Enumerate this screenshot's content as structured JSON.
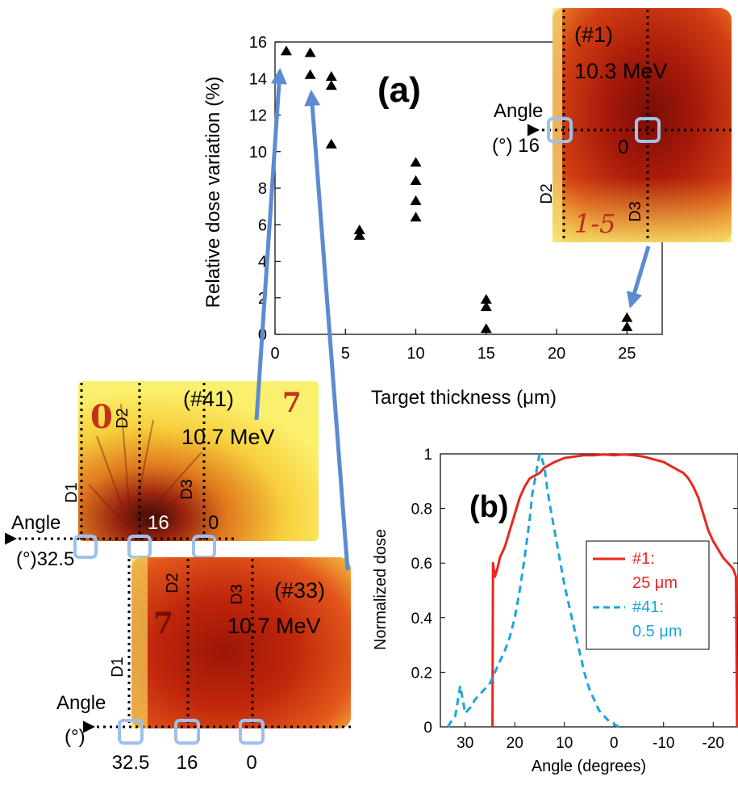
{
  "chart_data": [
    {
      "id": "a",
      "type": "scatter",
      "panel_label": "(a)",
      "xlabel": "Target thickness (μm)",
      "ylabel": "Relative dose variation (%)",
      "xlim": [
        0,
        27.5
      ],
      "ylim": [
        0,
        16
      ],
      "xticks": [
        0,
        5,
        10,
        15,
        20,
        25
      ],
      "yticks": [
        0,
        2,
        4,
        6,
        8,
        10,
        12,
        14,
        16
      ],
      "marker": "filled-triangle",
      "series": [
        {
          "points": [
            {
              "x": 0.8,
              "y": 15.5
            },
            {
              "x": 2.5,
              "y": 15.4
            },
            {
              "x": 2.5,
              "y": 14.2
            },
            {
              "x": 4.0,
              "y": 14.1
            },
            {
              "x": 4.0,
              "y": 13.6
            },
            {
              "x": 4.0,
              "y": 10.4
            },
            {
              "x": 6.0,
              "y": 5.7
            },
            {
              "x": 6.0,
              "y": 5.4
            },
            {
              "x": 10.0,
              "y": 9.4
            },
            {
              "x": 10.0,
              "y": 8.4
            },
            {
              "x": 10.0,
              "y": 7.3
            },
            {
              "x": 10.0,
              "y": 6.4
            },
            {
              "x": 15.0,
              "y": 1.9
            },
            {
              "x": 15.0,
              "y": 1.5
            },
            {
              "x": 15.0,
              "y": 0.3
            },
            {
              "x": 25.0,
              "y": 0.9
            },
            {
              "x": 25.0,
              "y": 0.4
            }
          ]
        }
      ]
    },
    {
      "id": "b",
      "type": "line",
      "panel_label": "(b)",
      "xlabel": "Angle (degrees)",
      "ylabel": "Normalized dose",
      "xlim": [
        35,
        -25
      ],
      "ylim": [
        0,
        1
      ],
      "xticks": [
        30,
        20,
        10,
        0,
        -10,
        -20
      ],
      "xtick_labels": [
        "30",
        "20",
        "10",
        "0",
        "-10",
        "-20"
      ],
      "yticks": [
        0,
        0.2,
        0.4,
        0.6,
        0.8,
        1
      ],
      "ytick_labels": [
        "0",
        "0.2",
        "0.4",
        "0.6",
        "0.8",
        "1"
      ],
      "legend": "inside-right",
      "series": [
        {
          "name_line1": "#1:",
          "name_line2": "25 μm",
          "color": "#e8281e",
          "dash": "solid",
          "x": [
            24.5,
            24.4,
            24.0,
            23.5,
            23.0,
            22.0,
            21.0,
            20.0,
            19.0,
            18.0,
            17.0,
            16.0,
            15.0,
            14.0,
            12.0,
            10.0,
            8.0,
            6.0,
            4.0,
            2.0,
            0.0,
            -2.0,
            -4.0,
            -6.0,
            -8.0,
            -10.0,
            -12.0,
            -14.0,
            -15.0,
            -16.0,
            -17.0,
            -18.0,
            -19.0,
            -20.0,
            -21.0,
            -22.0,
            -23.0,
            -24.0,
            -24.6,
            -24.8
          ],
          "y": [
            0.0,
            0.6,
            0.55,
            0.58,
            0.62,
            0.66,
            0.72,
            0.78,
            0.84,
            0.88,
            0.91,
            0.92,
            0.93,
            0.95,
            0.97,
            0.985,
            0.99,
            0.995,
            0.995,
            0.998,
            0.995,
            0.998,
            0.995,
            0.99,
            0.98,
            0.97,
            0.95,
            0.93,
            0.91,
            0.88,
            0.84,
            0.78,
            0.72,
            0.68,
            0.65,
            0.62,
            0.6,
            0.58,
            0.55,
            0.0
          ]
        },
        {
          "name_line1": "#41:",
          "name_line2": "0.5 μm",
          "color": "#1ba6dc",
          "dash": "dashed",
          "x": [
            33.5,
            32.8,
            32.0,
            31.0,
            30.0,
            29.0,
            28.0,
            27.0,
            26.0,
            25.0,
            24.0,
            23.0,
            22.0,
            21.0,
            20.0,
            19.0,
            18.0,
            17.0,
            16.5,
            16.0,
            15.5,
            15.0,
            14.5,
            14.0,
            13.5,
            13.0,
            12.0,
            11.0,
            10.0,
            9.0,
            8.0,
            7.0,
            6.0,
            5.0,
            4.0,
            3.0,
            2.0,
            1.0,
            0.0,
            -1.0,
            -2.0
          ],
          "y": [
            0.0,
            0.02,
            0.04,
            0.15,
            0.05,
            0.07,
            0.1,
            0.12,
            0.14,
            0.16,
            0.2,
            0.24,
            0.28,
            0.33,
            0.4,
            0.5,
            0.62,
            0.76,
            0.85,
            0.9,
            0.95,
            1.0,
            0.98,
            0.95,
            0.88,
            0.82,
            0.72,
            0.62,
            0.52,
            0.44,
            0.36,
            0.28,
            0.2,
            0.14,
            0.1,
            0.06,
            0.04,
            0.02,
            0.01,
            0.0,
            0.0
          ]
        }
      ]
    }
  ],
  "film_images": [
    {
      "id": "film-1",
      "title_line1": "(#1)",
      "title_line2": "10.3 MeV",
      "angle_label_line1": "Angle",
      "angle_label_line2": "(°) 16",
      "zero_label": "0",
      "d2_label": "D2",
      "d3_label": "D3",
      "scribble": "1-5",
      "palette": "dark-red"
    },
    {
      "id": "film-41",
      "title_line1": "(#41)",
      "title_line2": "10.7 MeV",
      "d1_label": "D1",
      "d2_label": "D2",
      "d3_label": "D3",
      "angle_label_line1": "Angle",
      "angle_label_line2": "(°)32.5",
      "mid_label": "16",
      "zero_label": "0",
      "scribble_a": "0",
      "scribble_b": "7",
      "palette": "yellow"
    },
    {
      "id": "film-33",
      "title_line1": "(#33)",
      "title_line2": "10.7 MeV",
      "d1_label": "D1",
      "d2_label": "D2",
      "d3_label": "D3",
      "angle_label_line1": "Angle",
      "angle_label_line2": "(°)",
      "bottom_labels": [
        "32.5",
        "16",
        "0"
      ],
      "scribble": "7",
      "palette": "red"
    }
  ],
  "colors": {
    "connector_arrow": "#5b8bd0",
    "marker_box": "#9fc0ea",
    "axis": "#000000"
  }
}
